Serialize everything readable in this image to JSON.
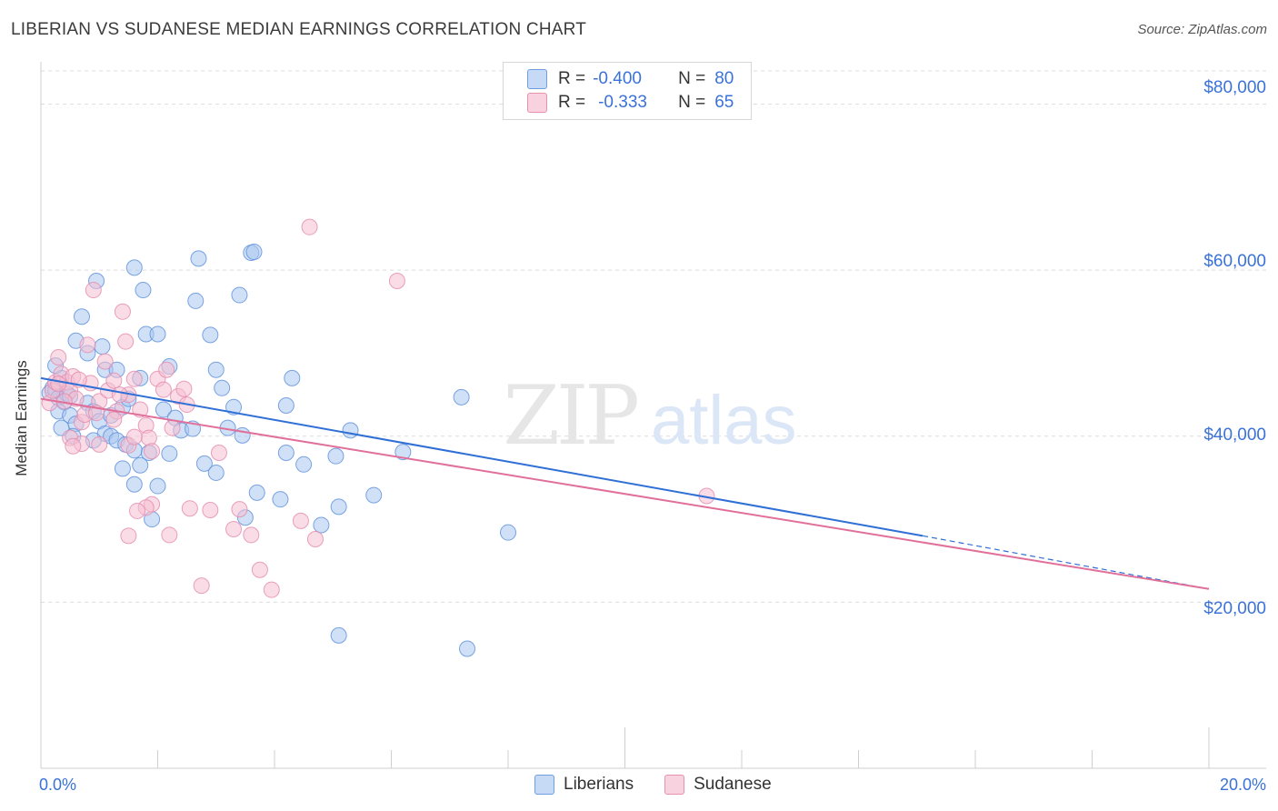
{
  "title": "LIBERIAN VS SUDANESE MEDIAN EARNINGS CORRELATION CHART",
  "source": "Source: ZipAtlas.com",
  "watermark": {
    "zip": "ZIP",
    "atlas": "atlas"
  },
  "legend": {
    "rows": [
      {
        "r_label": "R =",
        "r_value": "-0.400",
        "n_label": "N =",
        "n_value": "80",
        "color": "#a9c6f0",
        "border": "#6f9ee0"
      },
      {
        "r_label": "R =",
        "r_value": "-0.333",
        "n_label": "N =",
        "n_value": "65",
        "color": "#f6c0d2",
        "border": "#e890b0"
      }
    ]
  },
  "bottom_legend": {
    "liberians": "Liberians",
    "sudanese": "Sudanese"
  },
  "colors": {
    "liberians_fill": "#a9c6f0",
    "liberians_stroke": "#5b8fdb",
    "liberians_line": "#2f6fd6",
    "sudanese_fill": "#f6c0d2",
    "sudanese_stroke": "#e48aac",
    "sudanese_line": "#e0709a",
    "axis_text": "#3a72d8",
    "grid": "#dcdcdc"
  },
  "chart_data": {
    "type": "scatter",
    "title": "LIBERIAN VS SUDANESE MEDIAN EARNINGS CORRELATION CHART",
    "xlabel": "",
    "ylabel": "Median Earnings",
    "x_tick_labels": [
      "0.0%",
      "20.0%"
    ],
    "y_tick_labels": [
      "$20,000",
      "$40,000",
      "$60,000",
      "$80,000"
    ],
    "y_ticks": [
      20000,
      40000,
      60000,
      80000
    ],
    "xlim": [
      0,
      20
    ],
    "ylim": [
      0,
      84000
    ],
    "grid": true,
    "legend_position": "top-center",
    "series": [
      {
        "name": "Liberians",
        "r": -0.4,
        "n": 80,
        "trend": {
          "x": [
            0,
            15.1
          ],
          "y": [
            47000,
            28000
          ],
          "dashed_to": [
            20,
            21600
          ]
        },
        "points": [
          [
            0.2,
            45800
          ],
          [
            0.15,
            45200
          ],
          [
            0.25,
            45500
          ],
          [
            0.3,
            44600
          ],
          [
            0.35,
            47000
          ],
          [
            0.4,
            44100
          ],
          [
            0.45,
            45100
          ],
          [
            0.5,
            44800
          ],
          [
            0.3,
            43000
          ],
          [
            0.5,
            42500
          ],
          [
            0.35,
            41000
          ],
          [
            0.6,
            41500
          ],
          [
            0.55,
            40000
          ],
          [
            0.8,
            44000
          ],
          [
            0.9,
            43000
          ],
          [
            1.0,
            41800
          ],
          [
            0.7,
            54400
          ],
          [
            0.95,
            58700
          ],
          [
            0.6,
            51500
          ],
          [
            0.8,
            50000
          ],
          [
            1.05,
            50800
          ],
          [
            0.25,
            48500
          ],
          [
            1.1,
            48000
          ],
          [
            1.3,
            48000
          ],
          [
            1.4,
            43500
          ],
          [
            1.2,
            42500
          ],
          [
            1.1,
            40300
          ],
          [
            1.2,
            40000
          ],
          [
            1.3,
            39500
          ],
          [
            0.9,
            39500
          ],
          [
            1.5,
            44500
          ],
          [
            1.7,
            47000
          ],
          [
            1.6,
            60300
          ],
          [
            1.75,
            57600
          ],
          [
            1.8,
            52300
          ],
          [
            2.0,
            52300
          ],
          [
            2.2,
            48400
          ],
          [
            2.1,
            43200
          ],
          [
            2.3,
            42200
          ],
          [
            2.4,
            40700
          ],
          [
            2.6,
            40900
          ],
          [
            2.7,
            61400
          ],
          [
            2.65,
            56300
          ],
          [
            2.9,
            52200
          ],
          [
            3.0,
            48000
          ],
          [
            3.1,
            45800
          ],
          [
            3.3,
            43500
          ],
          [
            3.2,
            41000
          ],
          [
            3.4,
            57000
          ],
          [
            3.6,
            62100
          ],
          [
            3.65,
            62200
          ],
          [
            3.45,
            40100
          ],
          [
            4.2,
            43700
          ],
          [
            4.3,
            47000
          ],
          [
            4.2,
            38000
          ],
          [
            4.5,
            36600
          ],
          [
            1.45,
            39000
          ],
          [
            1.6,
            38300
          ],
          [
            1.85,
            38000
          ],
          [
            2.2,
            37900
          ],
          [
            1.4,
            36100
          ],
          [
            1.7,
            36500
          ],
          [
            1.6,
            34200
          ],
          [
            2.0,
            34000
          ],
          [
            2.8,
            36700
          ],
          [
            3.0,
            35600
          ],
          [
            1.9,
            30000
          ],
          [
            3.5,
            30200
          ],
          [
            3.7,
            33200
          ],
          [
            4.1,
            32400
          ],
          [
            4.8,
            29300
          ],
          [
            5.1,
            31500
          ],
          [
            5.7,
            32900
          ],
          [
            6.2,
            38100
          ],
          [
            7.2,
            44700
          ],
          [
            8.0,
            28400
          ],
          [
            5.05,
            37600
          ],
          [
            5.3,
            40700
          ],
          [
            5.1,
            16000
          ],
          [
            7.3,
            14400
          ]
        ]
      },
      {
        "name": "Sudanese",
        "r": -0.333,
        "n": 65,
        "trend": {
          "x": [
            0,
            20
          ],
          "y": [
            44500,
            21600
          ]
        },
        "points": [
          [
            0.15,
            44000
          ],
          [
            0.2,
            45500
          ],
          [
            0.25,
            46500
          ],
          [
            0.3,
            49500
          ],
          [
            0.35,
            47500
          ],
          [
            0.45,
            46500
          ],
          [
            0.5,
            45500
          ],
          [
            0.55,
            47200
          ],
          [
            0.6,
            44500
          ],
          [
            0.7,
            41700
          ],
          [
            0.75,
            42600
          ],
          [
            0.8,
            51000
          ],
          [
            0.9,
            57600
          ],
          [
            0.85,
            46400
          ],
          [
            1.0,
            44200
          ],
          [
            1.1,
            49000
          ],
          [
            1.15,
            45500
          ],
          [
            1.25,
            46700
          ],
          [
            1.3,
            43000
          ],
          [
            1.4,
            55000
          ],
          [
            1.45,
            51400
          ],
          [
            1.5,
            45000
          ],
          [
            1.6,
            46900
          ],
          [
            1.7,
            43200
          ],
          [
            1.8,
            41300
          ],
          [
            1.85,
            39800
          ],
          [
            1.9,
            38200
          ],
          [
            2.0,
            46900
          ],
          [
            2.1,
            45600
          ],
          [
            2.15,
            48000
          ],
          [
            2.25,
            41000
          ],
          [
            2.35,
            44800
          ],
          [
            2.45,
            45700
          ],
          [
            2.5,
            43800
          ],
          [
            0.5,
            39800
          ],
          [
            0.7,
            39100
          ],
          [
            1.0,
            39000
          ],
          [
            1.25,
            42000
          ],
          [
            1.5,
            38900
          ],
          [
            1.6,
            39900
          ],
          [
            1.9,
            31800
          ],
          [
            1.8,
            31400
          ],
          [
            1.65,
            31000
          ],
          [
            1.5,
            28000
          ],
          [
            2.2,
            28100
          ],
          [
            2.55,
            31300
          ],
          [
            2.9,
            31100
          ],
          [
            3.05,
            38000
          ],
          [
            3.4,
            31200
          ],
          [
            3.3,
            28800
          ],
          [
            3.6,
            28100
          ],
          [
            3.75,
            23900
          ],
          [
            3.95,
            21500
          ],
          [
            2.75,
            22000
          ],
          [
            4.45,
            29800
          ],
          [
            4.7,
            27600
          ],
          [
            4.6,
            65200
          ],
          [
            6.1,
            58700
          ],
          [
            11.4,
            32800
          ],
          [
            0.55,
            38800
          ],
          [
            1.35,
            45000
          ],
          [
            0.3,
            46300
          ],
          [
            0.4,
            44200
          ],
          [
            0.65,
            46800
          ],
          [
            0.95,
            42800
          ]
        ]
      }
    ]
  }
}
